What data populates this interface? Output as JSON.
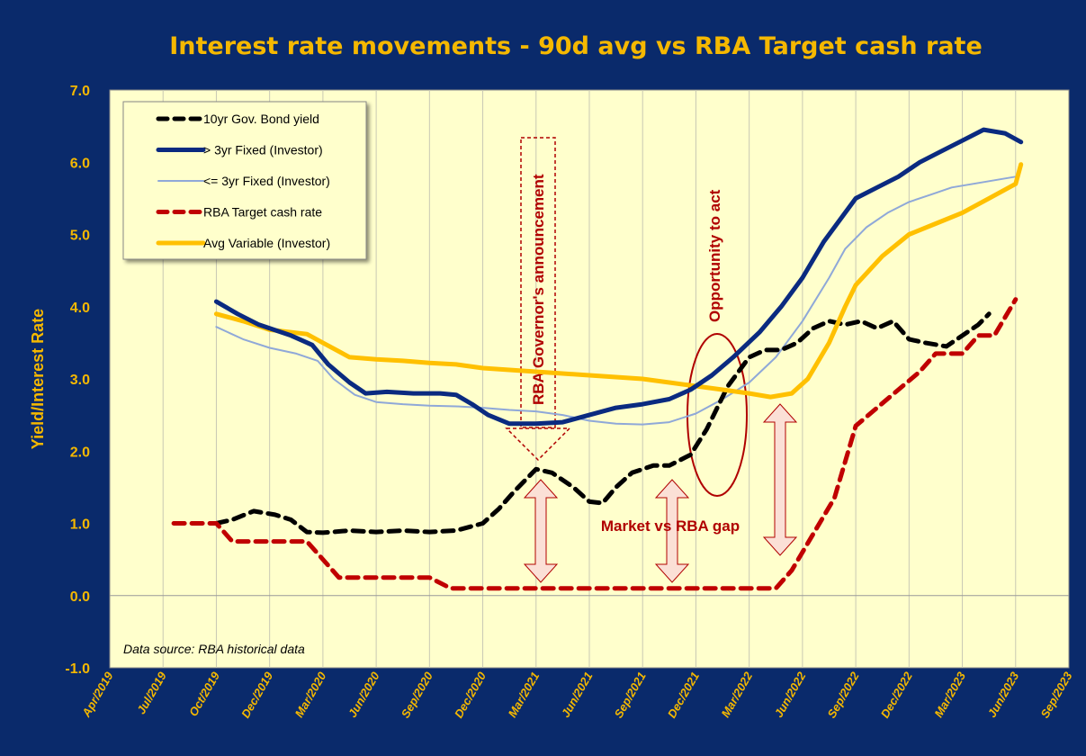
{
  "colors": {
    "background": "#0a2a6b",
    "plot_area": "#ffffcc",
    "accent_text": "#f5b800",
    "annotation_red": "#b00000"
  },
  "chart_data": {
    "type": "line",
    "title": "Interest rate movements - 90d avg vs RBA Target cash rate",
    "ylabel": "Yield/Interest Rate",
    "xlabel": "",
    "ylim": [
      -1.0,
      7.0
    ],
    "yticks": [
      "7.0",
      "6.0",
      "5.0",
      "4.0",
      "3.0",
      "2.0",
      "1.0",
      "0.0",
      "-1.0"
    ],
    "xticks": [
      "Apr/2019",
      "Jul/2019",
      "Oct/2019",
      "Dec/2019",
      "Mar/2020",
      "Jun/2020",
      "Sep/2020",
      "Dec/2020",
      "Mar/2021",
      "Jun/2021",
      "Sep/2021",
      "Dec/2021",
      "Mar/2022",
      "Jun/2022",
      "Sep/2022",
      "Dec/2022",
      "Mar/2023",
      "Jun/2023",
      "Sep/2023"
    ],
    "x_unit": "tick index (0 = Apr/2019, 18 = Sep/2023)",
    "grid": "vertical",
    "legend_position": "top-left",
    "series": [
      {
        "name": "10yr Gov. Bond yield",
        "color": "#000000",
        "style": "dash-heavy",
        "points": [
          [
            2.0,
            1.0
          ],
          [
            2.3,
            1.05
          ],
          [
            2.7,
            1.17
          ],
          [
            3.1,
            1.12
          ],
          [
            3.4,
            1.05
          ],
          [
            3.7,
            0.88
          ],
          [
            4.0,
            0.87
          ],
          [
            4.5,
            0.9
          ],
          [
            5.0,
            0.88
          ],
          [
            5.5,
            0.9
          ],
          [
            6.0,
            0.88
          ],
          [
            6.5,
            0.9
          ],
          [
            7.0,
            1.0
          ],
          [
            7.3,
            1.2
          ],
          [
            7.6,
            1.45
          ],
          [
            8.0,
            1.75
          ],
          [
            8.3,
            1.7
          ],
          [
            8.7,
            1.5
          ],
          [
            9.0,
            1.3
          ],
          [
            9.25,
            1.28
          ],
          [
            9.5,
            1.5
          ],
          [
            9.8,
            1.7
          ],
          [
            10.2,
            1.8
          ],
          [
            10.5,
            1.8
          ],
          [
            10.9,
            1.95
          ],
          [
            11.2,
            2.3
          ],
          [
            11.6,
            2.9
          ],
          [
            12.0,
            3.3
          ],
          [
            12.3,
            3.4
          ],
          [
            12.6,
            3.4
          ],
          [
            12.9,
            3.5
          ],
          [
            13.2,
            3.7
          ],
          [
            13.5,
            3.8
          ],
          [
            13.8,
            3.75
          ],
          [
            14.1,
            3.8
          ],
          [
            14.4,
            3.7
          ],
          [
            14.7,
            3.8
          ],
          [
            15.0,
            3.55
          ],
          [
            15.3,
            3.5
          ],
          [
            15.7,
            3.45
          ],
          [
            16.0,
            3.6
          ],
          [
            16.3,
            3.75
          ],
          [
            16.5,
            3.9
          ]
        ]
      },
      {
        "name": "> 3yr Fixed (Investor)",
        "color": "#0a2a80",
        "style": "solid-thick",
        "points": [
          [
            2.0,
            4.07
          ],
          [
            2.4,
            3.9
          ],
          [
            2.8,
            3.75
          ],
          [
            3.4,
            3.6
          ],
          [
            3.8,
            3.47
          ],
          [
            4.1,
            3.2
          ],
          [
            4.5,
            2.95
          ],
          [
            4.8,
            2.8
          ],
          [
            5.2,
            2.82
          ],
          [
            5.7,
            2.8
          ],
          [
            6.2,
            2.8
          ],
          [
            6.5,
            2.78
          ],
          [
            6.8,
            2.65
          ],
          [
            7.1,
            2.5
          ],
          [
            7.5,
            2.38
          ],
          [
            8.0,
            2.38
          ],
          [
            8.5,
            2.4
          ],
          [
            9.0,
            2.5
          ],
          [
            9.5,
            2.6
          ],
          [
            10.0,
            2.65
          ],
          [
            10.5,
            2.72
          ],
          [
            10.9,
            2.85
          ],
          [
            11.3,
            3.05
          ],
          [
            11.7,
            3.3
          ],
          [
            12.2,
            3.65
          ],
          [
            12.6,
            4.0
          ],
          [
            13.0,
            4.4
          ],
          [
            13.4,
            4.9
          ],
          [
            13.8,
            5.3
          ],
          [
            14.0,
            5.5
          ],
          [
            14.4,
            5.65
          ],
          [
            14.8,
            5.8
          ],
          [
            15.2,
            6.0
          ],
          [
            15.6,
            6.15
          ],
          [
            16.0,
            6.3
          ],
          [
            16.4,
            6.45
          ],
          [
            16.8,
            6.4
          ],
          [
            17.1,
            6.28
          ]
        ]
      },
      {
        "name": "<= 3yr Fixed (Investor)",
        "color": "#8fa8d8",
        "style": "solid-thin",
        "points": [
          [
            2.0,
            3.72
          ],
          [
            2.5,
            3.55
          ],
          [
            3.0,
            3.43
          ],
          [
            3.5,
            3.35
          ],
          [
            3.9,
            3.25
          ],
          [
            4.2,
            3.0
          ],
          [
            4.6,
            2.78
          ],
          [
            5.0,
            2.68
          ],
          [
            5.5,
            2.65
          ],
          [
            6.0,
            2.63
          ],
          [
            6.5,
            2.62
          ],
          [
            7.0,
            2.6
          ],
          [
            7.5,
            2.57
          ],
          [
            8.0,
            2.55
          ],
          [
            8.5,
            2.5
          ],
          [
            9.0,
            2.42
          ],
          [
            9.5,
            2.38
          ],
          [
            10.0,
            2.37
          ],
          [
            10.5,
            2.4
          ],
          [
            11.0,
            2.52
          ],
          [
            11.5,
            2.72
          ],
          [
            12.0,
            2.95
          ],
          [
            12.5,
            3.3
          ],
          [
            13.0,
            3.8
          ],
          [
            13.5,
            4.4
          ],
          [
            13.8,
            4.8
          ],
          [
            14.2,
            5.1
          ],
          [
            14.6,
            5.3
          ],
          [
            15.0,
            5.45
          ],
          [
            15.4,
            5.55
          ],
          [
            15.8,
            5.65
          ],
          [
            16.2,
            5.7
          ],
          [
            16.6,
            5.75
          ],
          [
            17.0,
            5.8
          ]
        ]
      },
      {
        "name": "RBA Target cash rate",
        "color": "#c00000",
        "style": "dash-heavy",
        "points": [
          [
            1.2,
            1.0
          ],
          [
            2.0,
            1.0
          ],
          [
            2.3,
            0.75
          ],
          [
            3.7,
            0.75
          ],
          [
            4.0,
            0.5
          ],
          [
            4.3,
            0.25
          ],
          [
            6.0,
            0.25
          ],
          [
            6.4,
            0.1
          ],
          [
            12.5,
            0.1
          ],
          [
            12.8,
            0.35
          ],
          [
            13.2,
            0.85
          ],
          [
            13.6,
            1.35
          ],
          [
            14.0,
            2.35
          ],
          [
            14.4,
            2.6
          ],
          [
            14.8,
            2.85
          ],
          [
            15.2,
            3.1
          ],
          [
            15.5,
            3.35
          ],
          [
            16.0,
            3.35
          ],
          [
            16.3,
            3.6
          ],
          [
            16.6,
            3.6
          ],
          [
            17.0,
            4.1
          ]
        ]
      },
      {
        "name": "Avg Variable (Investor)",
        "color": "#ffc000",
        "style": "solid-thick",
        "points": [
          [
            2.0,
            3.9
          ],
          [
            2.5,
            3.8
          ],
          [
            3.0,
            3.68
          ],
          [
            3.7,
            3.62
          ],
          [
            4.0,
            3.5
          ],
          [
            4.5,
            3.3
          ],
          [
            5.0,
            3.27
          ],
          [
            5.5,
            3.25
          ],
          [
            6.0,
            3.22
          ],
          [
            6.5,
            3.2
          ],
          [
            7.0,
            3.15
          ],
          [
            8.0,
            3.1
          ],
          [
            9.0,
            3.05
          ],
          [
            10.0,
            3.0
          ],
          [
            10.5,
            2.95
          ],
          [
            11.0,
            2.9
          ],
          [
            11.5,
            2.85
          ],
          [
            12.0,
            2.8
          ],
          [
            12.4,
            2.75
          ],
          [
            12.8,
            2.8
          ],
          [
            13.1,
            3.0
          ],
          [
            13.5,
            3.5
          ],
          [
            13.8,
            4.0
          ],
          [
            14.0,
            4.3
          ],
          [
            14.5,
            4.7
          ],
          [
            15.0,
            5.0
          ],
          [
            15.5,
            5.15
          ],
          [
            16.0,
            5.3
          ],
          [
            16.5,
            5.5
          ],
          [
            17.0,
            5.7
          ],
          [
            17.1,
            5.97
          ]
        ]
      }
    ],
    "annotations": {
      "rba_governor": "RBA Governor's announcement",
      "opportunity": "Opportunity to act",
      "gap": "Market vs RBA gap",
      "source": "Data source: RBA historical data"
    }
  }
}
